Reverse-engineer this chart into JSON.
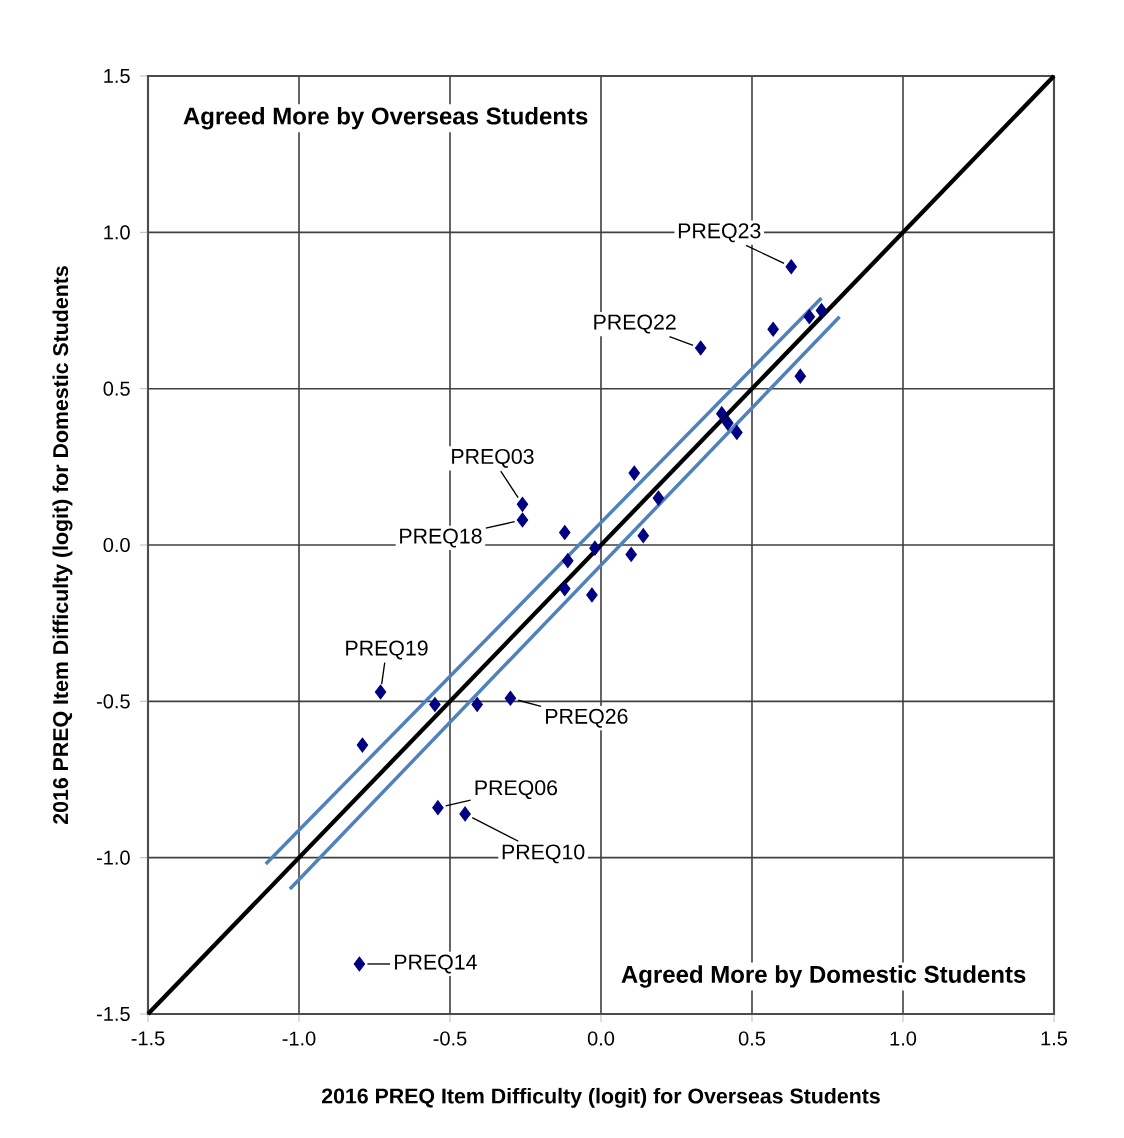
{
  "chart_data": {
    "type": "scatter",
    "xlabel": "2016 PREQ Item Difficulty (logit) for Overseas Students",
    "ylabel": "2016 PREQ Item Difficulty (logit) for Domestic Students",
    "xlim": [
      -1.5,
      1.5
    ],
    "ylim": [
      -1.5,
      1.5
    ],
    "xticks": [
      -1.5,
      {
        "value": -1,
        "label": "-1.0"
      },
      -0.5,
      {
        "value": 0,
        "label": "0.0"
      },
      0.5,
      {
        "value": 1,
        "label": "1.0"
      },
      1.5
    ],
    "yticks": [
      -1.5,
      {
        "value": -1,
        "label": "-1.0"
      },
      -0.5,
      {
        "value": 0,
        "label": "0.0"
      },
      0.5,
      {
        "value": 1,
        "label": "1.0"
      },
      1.5
    ],
    "grid": true,
    "series": [
      {
        "marker": "diamond",
        "color": "#000080",
        "x": [
          0.63,
          0.33,
          0.57,
          0.73,
          0.69,
          0.66,
          0.4,
          0.42,
          0.45,
          0.11,
          0.19,
          0.14,
          0.1,
          -0.02,
          -0.12,
          -0.11,
          -0.12,
          -0.03,
          -0.26,
          -0.26,
          -0.73,
          -0.55,
          -0.41,
          -0.3,
          -0.79,
          -0.54,
          -0.45,
          -0.8
        ],
        "values": [
          0.89,
          0.63,
          0.69,
          0.75,
          0.73,
          0.54,
          0.42,
          0.39,
          0.36,
          0.23,
          0.15,
          0.03,
          -0.03,
          -0.01,
          0.04,
          -0.05,
          -0.14,
          -0.16,
          0.13,
          0.08,
          -0.47,
          -0.51,
          -0.51,
          -0.49,
          -0.64,
          -0.84,
          -0.86,
          -1.34
        ]
      },
      {
        "type": "line",
        "color": "#000000",
        "x": [
          -1.5,
          1.5
        ],
        "values": [
          -1.5,
          1.5
        ]
      },
      {
        "type": "line",
        "color": "#4f81bd",
        "x": [
          -1.11,
          0.73
        ],
        "values": [
          -1.02,
          0.79
        ]
      },
      {
        "type": "line",
        "color": "#4f81bd",
        "x": [
          -1.03,
          0.79
        ],
        "values": [
          -1.1,
          0.73
        ]
      }
    ],
    "annotations": [
      "Agreed More by Overseas Students",
      "Agreed More by Domestic Students",
      {
        "text": "PREQ23",
        "x": 0.63,
        "y": 0.89
      },
      {
        "text": "PREQ22",
        "x": 0.33,
        "y": 0.63
      },
      {
        "text": "PREQ03",
        "x": -0.26,
        "y": 0.13
      },
      {
        "text": "PREQ18",
        "x": -0.26,
        "y": 0.08
      },
      {
        "text": "PREQ19",
        "x": -0.73,
        "y": -0.47
      },
      {
        "text": "PREQ26",
        "x": -0.3,
        "y": -0.49
      },
      {
        "text": "PREQ06",
        "x": -0.54,
        "y": -0.84
      },
      {
        "text": "PREQ10",
        "x": -0.45,
        "y": -0.86
      },
      {
        "text": "PREQ14",
        "x": -0.8,
        "y": -1.34
      }
    ]
  }
}
